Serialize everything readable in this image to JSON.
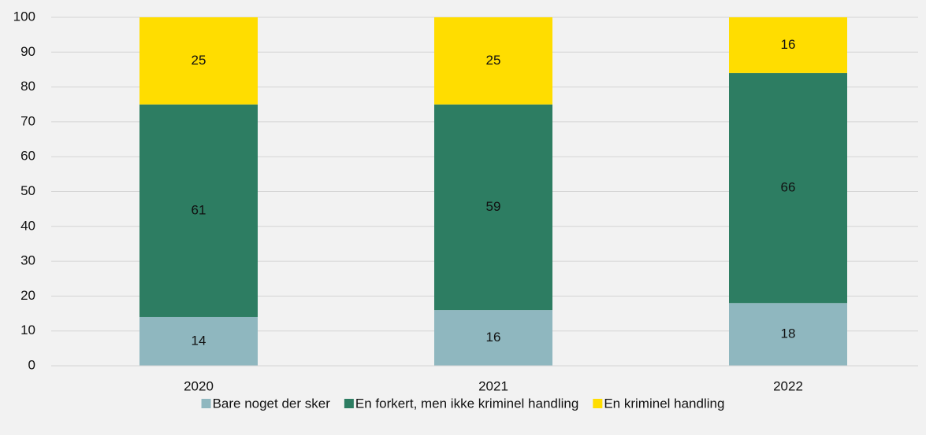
{
  "chart_data": {
    "type": "stacked_bar",
    "categories": [
      "2020",
      "2021",
      "2022"
    ],
    "series": [
      {
        "name": "Bare noget der sker",
        "color": "#8fb7bf",
        "values": [
          14,
          16,
          18
        ]
      },
      {
        "name": "En forkert, men ikke kriminel handling",
        "color": "#2d7d62",
        "values": [
          61,
          59,
          66
        ]
      },
      {
        "name": "En kriminel handling",
        "color": "#ffdd00",
        "values": [
          25,
          25,
          16
        ]
      }
    ],
    "ylim": [
      0,
      100
    ],
    "yticks": [
      0,
      10,
      20,
      30,
      40,
      50,
      60,
      70,
      80,
      90,
      100
    ],
    "grid": true,
    "legend": "bottom"
  }
}
